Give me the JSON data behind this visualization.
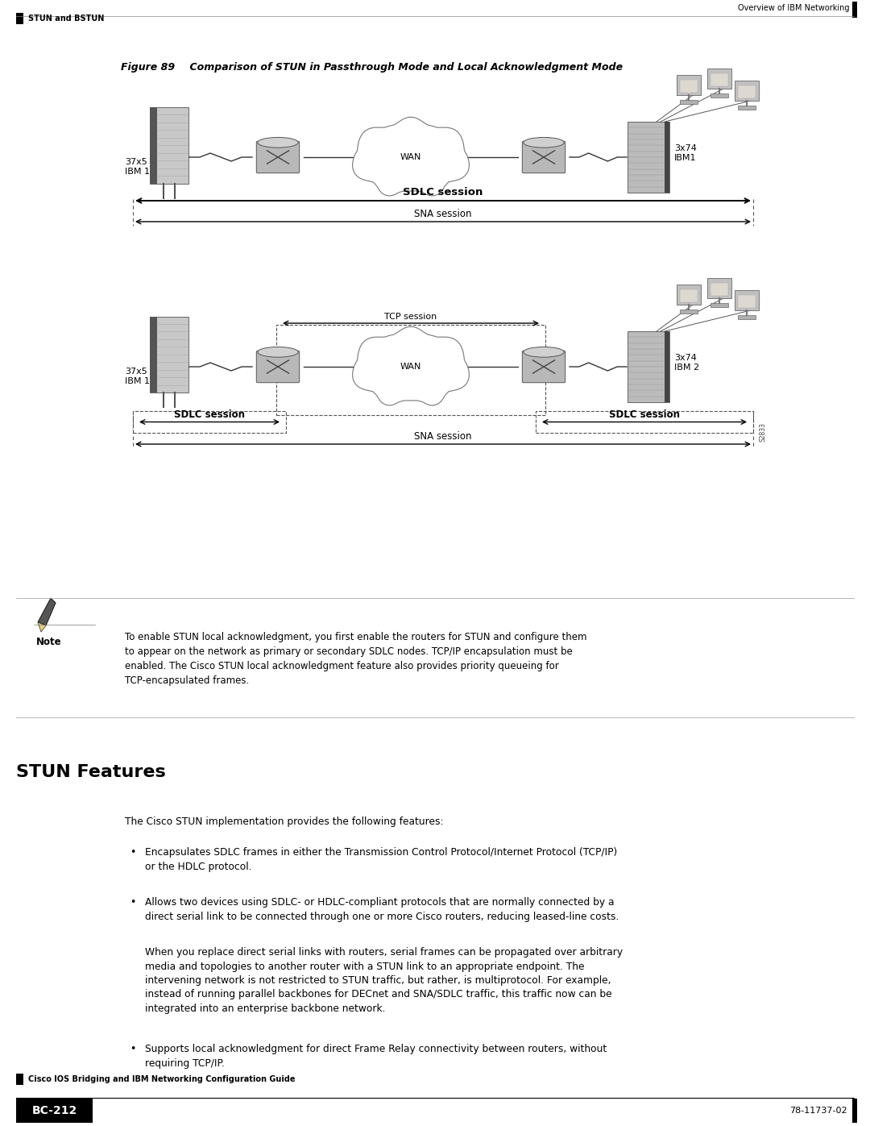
{
  "page_width": 10.8,
  "page_height": 13.97,
  "bg_color": "#ffffff",
  "header_text": "Overview of IBM Networking",
  "section_label": "STUN and BSTUN",
  "figure_caption_bold": "Figure 89",
  "figure_caption_rest": "    Comparison of STUN in Passthrough Mode and Local Acknowledgment Mode",
  "diagram1": {
    "left_label": "37x5\nIBM 1",
    "right_label": "3x74\nIBM1",
    "wan_label": "WAN",
    "sdlc_session": "SDLC session",
    "sna_session": "SNA session"
  },
  "diagram2": {
    "left_label": "37x5\nIBM 1",
    "right_label": "3x74\nIBM 2",
    "wan_label": "WAN",
    "tcp_session": "TCP session",
    "sdlc_left": "SDLC session",
    "sdlc_right": "SDLC session",
    "sna_session": "SNA session",
    "id_label": "S2833"
  },
  "note_label": "Note",
  "note_text": "To enable STUN local acknowledgment, you first enable the routers for STUN and configure them\nto appear on the network as primary or secondary SDLC nodes. TCP/IP encapsulation must be\nenabled. The Cisco STUN local acknowledgment feature also provides priority queueing for\nTCP-encapsulated frames.",
  "section_title": "STUN Features",
  "body_intro": "The Cisco STUN implementation provides the following features:",
  "bullet1": "Encapsulates SDLC frames in either the Transmission Control Protocol/Internet Protocol (TCP/IP)\nor the HDLC protocol.",
  "bullet2": "Allows two devices using SDLC- or HDLC-compliant protocols that are normally connected by a\ndirect serial link to be connected through one or more Cisco routers, reducing leased-line costs.",
  "indent_para": "When you replace direct serial links with routers, serial frames can be propagated over arbitrary\nmedia and topologies to another router with a STUN link to an appropriate endpoint. The\nintervening network is not restricted to STUN traffic, but rather, is multiprotocol. For example,\ninstead of running parallel backbones for DECnet and SNA/SDLC traffic, this traffic now can be\nintegrated into an enterprise backbone network.",
  "bullet3": "Supports local acknowledgment for direct Frame Relay connectivity between routers, without\nrequiring TCP/IP.",
  "footer_center": "Cisco IOS Bridging and IBM Networking Configuration Guide",
  "footer_page_label": "BC-212",
  "footer_right": "78-11737-02"
}
